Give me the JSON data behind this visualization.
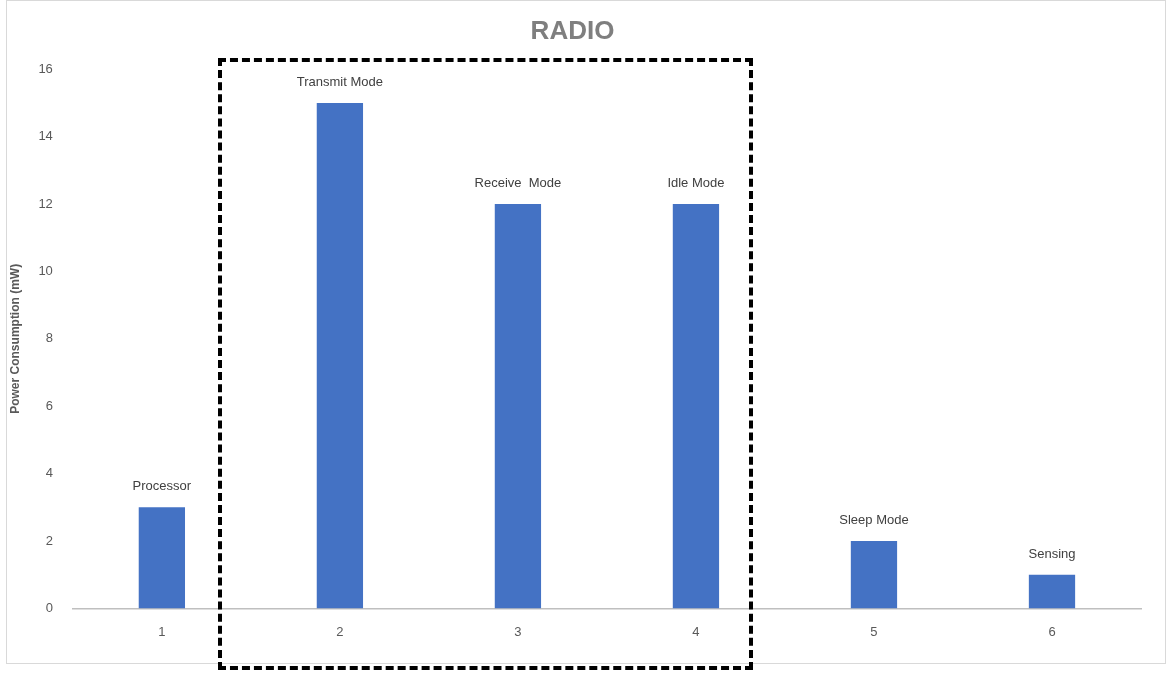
{
  "chart_data": {
    "type": "bar",
    "title": "RADIO",
    "ylabel": "Power Consumption (mW)",
    "categories": [
      "1",
      "2",
      "3",
      "4",
      "5",
      "6"
    ],
    "values": [
      3,
      15,
      12,
      12,
      2,
      1
    ],
    "color": "#4472c4",
    "ylim": [
      0,
      16
    ],
    "yticks": [
      0,
      2,
      4,
      6,
      8,
      10,
      12,
      14,
      16
    ],
    "grid": false,
    "legend": false,
    "annotations": [
      {
        "text": "Processor",
        "x": "1",
        "y": 3
      },
      {
        "text": "Transmit Mode",
        "x": "2",
        "y": 15
      },
      {
        "text": "Receive  Mode",
        "x": "3",
        "y": 12
      },
      {
        "text": "Idle Mode",
        "x": "4",
        "y": 12
      },
      {
        "text": "Sleep Mode",
        "x": "5",
        "y": 2
      },
      {
        "text": "Sensing",
        "x": "6",
        "y": 1
      }
    ]
  }
}
